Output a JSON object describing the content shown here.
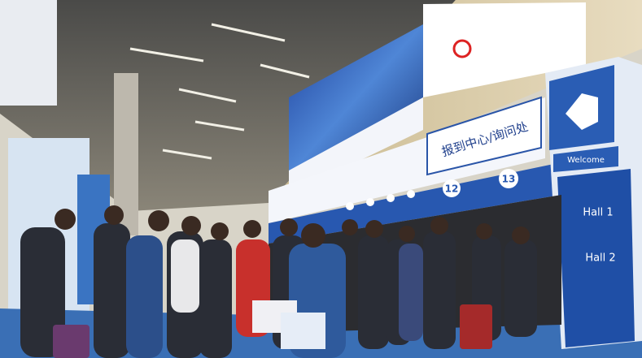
{
  "signs": {
    "help_desk": "报到中心/询问处",
    "gate_left": "12",
    "gate_right": "13",
    "welcome": "Welcome",
    "hall_upper": "Hall 1",
    "hall_lower": "Hall 2"
  }
}
